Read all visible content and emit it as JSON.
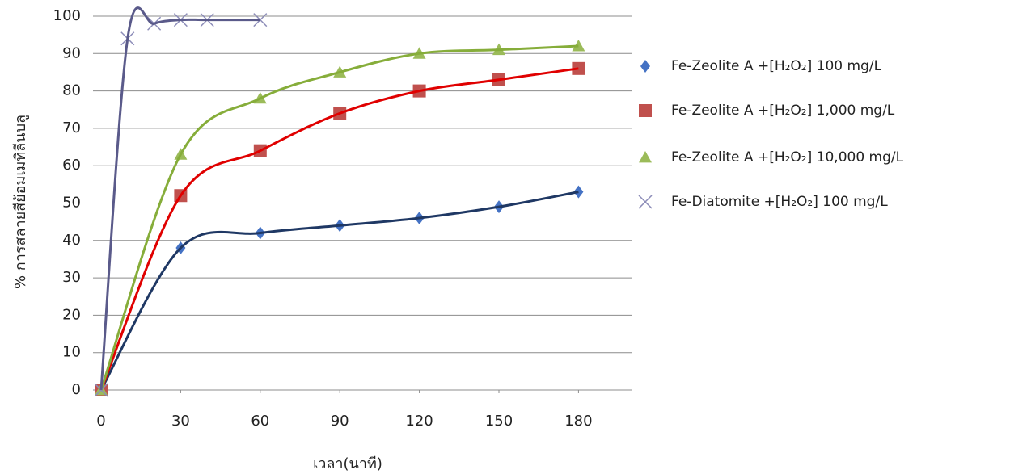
{
  "chart_data": {
    "type": "scatter",
    "x_label": "เวลา(นาที)",
    "y_label": "% การสลายสีย้อมเมทิลีนบลู",
    "xlim": [
      0,
      200
    ],
    "ylim": [
      0,
      100
    ],
    "xticks": [
      0,
      30,
      60,
      90,
      120,
      150,
      180
    ],
    "yticks": [
      0,
      10,
      20,
      30,
      40,
      50,
      60,
      70,
      80,
      90,
      100
    ],
    "grid": true,
    "legend": "right",
    "series": [
      {
        "name": "Fe-Zeolite A +[H₂O₂] 100 mg/L",
        "color": "#4472c4",
        "line_color": "#1f3864",
        "marker": "diamond",
        "x": [
          0,
          30,
          60,
          90,
          120,
          150,
          180
        ],
        "values": [
          0,
          38,
          42,
          44,
          46,
          49,
          53
        ]
      },
      {
        "name": "Fe-Zeolite A +[H₂O₂] 1,000 mg/L",
        "color": "#c0504d",
        "line_color": "#e00000",
        "marker": "square",
        "x": [
          0,
          30,
          60,
          90,
          120,
          150,
          180
        ],
        "values": [
          0,
          52,
          64,
          74,
          80,
          83,
          86
        ]
      },
      {
        "name": "Fe-Zeolite A +[H₂O₂] 10,000 mg/L",
        "color": "#9bbb59",
        "line_color": "#86ad3a",
        "marker": "triangle",
        "x": [
          0,
          30,
          60,
          90,
          120,
          150,
          180
        ],
        "values": [
          0,
          63,
          78,
          85,
          90,
          91,
          92
        ]
      },
      {
        "name": "Fe-Diatomite +[H₂O₂] 100 mg/L",
        "color": "#8c8cb8",
        "line_color": "#5a5a8a",
        "marker": "x",
        "x": [
          0,
          10,
          20,
          30,
          40,
          60
        ],
        "values": [
          0,
          94,
          98,
          99,
          99,
          99
        ]
      }
    ]
  }
}
